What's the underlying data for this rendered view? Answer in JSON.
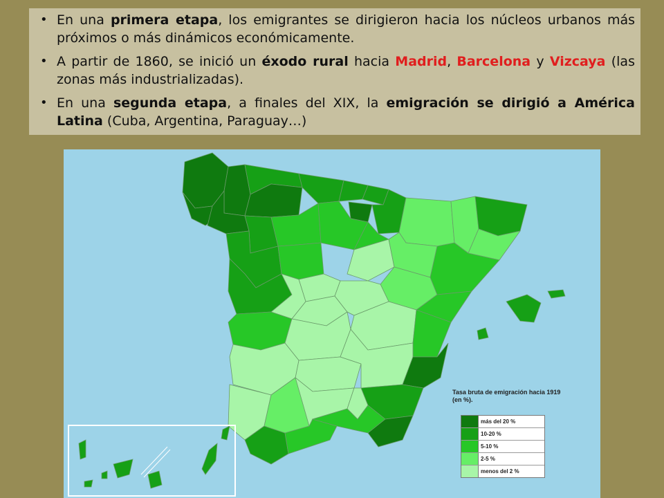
{
  "bullets": {
    "b1": {
      "t1": "En una ",
      "t2": "primera etapa",
      "t3": ", los emigrantes se dirigieron hacia los núcleos urbanos más próximos o más dinámicos económicamente."
    },
    "b2": {
      "t1": "A partir de 1860, se inició un ",
      "t2": "éxodo rural",
      "t3": " hacia ",
      "t4": "Madrid",
      "t5": ", ",
      "t6": "Barcelona",
      "t7": " y ",
      "t8": "Vizcaya",
      "t9": " (las zonas más industrializadas)."
    },
    "b3": {
      "t1": "En una ",
      "t2": "segunda etapa",
      "t3": ", a finales del XIX, la ",
      "t4": "emigración se dirigió a América Latina",
      "t5": " (Cuba, Argentina, Paraguay…)"
    }
  },
  "map": {
    "legend_title": "Tasa bruta de emigración hacia 1919 (en %).",
    "legend": [
      {
        "label": "más del 20 %",
        "color": "#0f7a0f"
      },
      {
        "label": "10-20 %",
        "color": "#16a016"
      },
      {
        "label": "5-10 %",
        "color": "#27c727"
      },
      {
        "label": "2-5 %",
        "color": "#66ee66"
      },
      {
        "label": "menos del 2 %",
        "color": "#a8f5a8"
      }
    ],
    "sea_color": "#9dd3e8"
  }
}
